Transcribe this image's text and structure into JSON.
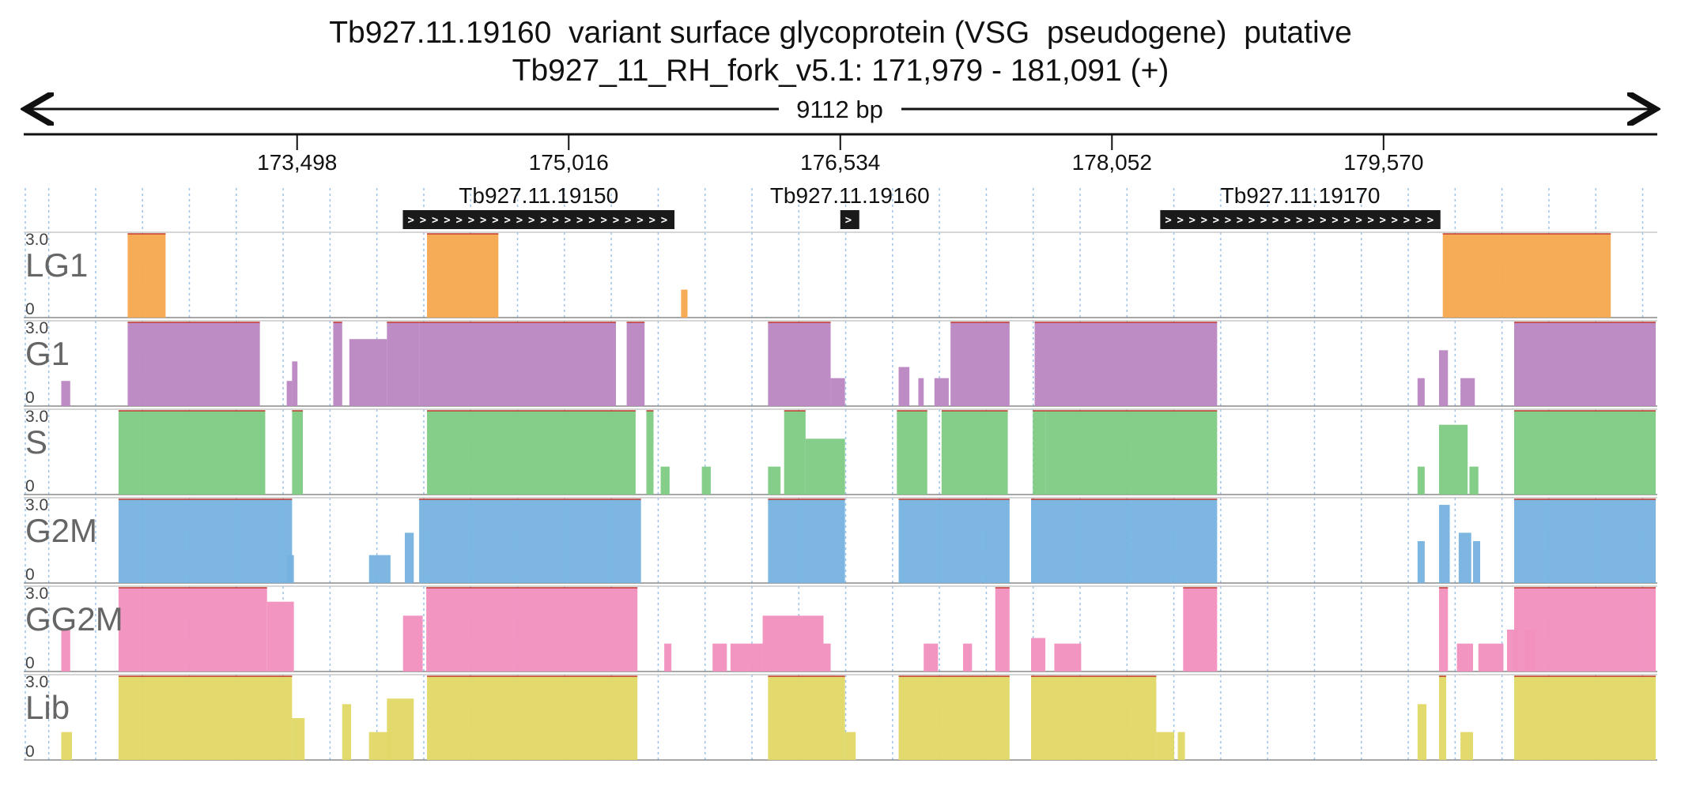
{
  "header": {
    "title": "Tb927.11.19160  variant surface glycoprotein (VSG  pseudogene)  putative",
    "subtitle": "Tb927_11_RH_fork_v5.1: 171,979 - 181,091 (+)"
  },
  "chart_data": {
    "type": "area",
    "region": {
      "chrom": "Tb927_11_RH_fork_v5.1",
      "start": 171979,
      "end": 181091,
      "strand": "+",
      "length_label": "9112 bp"
    },
    "ticks": [
      173498,
      175016,
      176534,
      178052,
      179570
    ],
    "tick_labels": [
      "173,498",
      "175,016",
      "176,534",
      "178,052",
      "179,570"
    ],
    "genes": [
      {
        "name": "Tb927.11.19150",
        "start": 174089,
        "end": 175607,
        "strand": "+",
        "arrow": ">"
      },
      {
        "name": "Tb927.11.19160",
        "start": 176534,
        "end": 176640,
        "strand": "+",
        "arrow": ">"
      },
      {
        "name": "Tb927.11.19170",
        "start": 178322,
        "end": 179888,
        "strand": "+",
        "arrow": ">"
      }
    ],
    "ylim": [
      0,
      3.0
    ],
    "y_max_label": "3.0",
    "y_min_label": "0",
    "grid_bin": 262,
    "tracks": [
      {
        "name": "LG1",
        "color": "#f5a84e",
        "segments": [
          [
            172551,
            172763,
            3.0
          ],
          [
            174224,
            174623,
            3.0
          ],
          [
            175644,
            175680,
            1.0
          ],
          [
            179901,
            180840,
            3.0
          ]
        ]
      },
      {
        "name": "G1",
        "color": "#ba86c2",
        "segments": [
          [
            172180,
            172230,
            0.9
          ],
          [
            172551,
            173290,
            3.0
          ],
          [
            173440,
            173470,
            0.9
          ],
          [
            173470,
            173500,
            1.6
          ],
          [
            173700,
            173750,
            3.0
          ],
          [
            173790,
            174000,
            2.4
          ],
          [
            174000,
            174180,
            3.0
          ],
          [
            174180,
            175280,
            3.0
          ],
          [
            175340,
            175440,
            3.0
          ],
          [
            176130,
            176480,
            3.0
          ],
          [
            176480,
            176560,
            1.0
          ],
          [
            176860,
            176920,
            1.4
          ],
          [
            176970,
            177000,
            1.0
          ],
          [
            177060,
            177140,
            1.0
          ],
          [
            177150,
            177480,
            3.0
          ],
          [
            177620,
            178640,
            3.0
          ],
          [
            179760,
            179800,
            1.0
          ],
          [
            179880,
            179930,
            2.0
          ],
          [
            180000,
            180080,
            1.0
          ],
          [
            180300,
            181091,
            3.0
          ]
        ]
      },
      {
        "name": "S",
        "color": "#7ecb83",
        "segments": [
          [
            172500,
            173320,
            3.0
          ],
          [
            173470,
            173530,
            3.0
          ],
          [
            174224,
            175390,
            3.0
          ],
          [
            175450,
            175490,
            3.0
          ],
          [
            175530,
            175580,
            1.0
          ],
          [
            175760,
            175810,
            1.0
          ],
          [
            176130,
            176200,
            1.0
          ],
          [
            176220,
            176340,
            3.0
          ],
          [
            176340,
            176560,
            2.0
          ],
          [
            176850,
            177020,
            3.0
          ],
          [
            177100,
            177470,
            3.0
          ],
          [
            177610,
            177680,
            3.0
          ],
          [
            177680,
            178640,
            3.0
          ],
          [
            179760,
            179800,
            1.0
          ],
          [
            179880,
            180040,
            2.5
          ],
          [
            180050,
            180100,
            1.0
          ],
          [
            180300,
            181091,
            3.0
          ]
        ]
      },
      {
        "name": "G2M",
        "color": "#76b2df",
        "segments": [
          [
            172500,
            173470,
            3.0
          ],
          [
            173440,
            173480,
            1.0
          ],
          [
            173900,
            174020,
            1.0
          ],
          [
            174100,
            174150,
            1.8
          ],
          [
            174180,
            175420,
            3.0
          ],
          [
            176130,
            176560,
            3.0
          ],
          [
            176860,
            177480,
            3.0
          ],
          [
            177600,
            178640,
            3.0
          ],
          [
            179760,
            179800,
            1.5
          ],
          [
            179880,
            179940,
            2.8
          ],
          [
            179990,
            180060,
            1.8
          ],
          [
            180070,
            180110,
            1.5
          ],
          [
            180300,
            181091,
            3.0
          ]
        ]
      },
      {
        "name": "GG2M",
        "color": "#f18fbe",
        "segments": [
          [
            172180,
            172230,
            1.5
          ],
          [
            172500,
            173330,
            3.0
          ],
          [
            173330,
            173480,
            2.5
          ],
          [
            174090,
            174200,
            2.0
          ],
          [
            174220,
            175400,
            3.0
          ],
          [
            175550,
            175590,
            1.0
          ],
          [
            175820,
            175900,
            1.0
          ],
          [
            175920,
            176100,
            1.0
          ],
          [
            176100,
            176250,
            2.0
          ],
          [
            176250,
            176440,
            2.0
          ],
          [
            176440,
            176480,
            1.0
          ],
          [
            177000,
            177080,
            1.0
          ],
          [
            177220,
            177270,
            1.0
          ],
          [
            177400,
            177480,
            3.0
          ],
          [
            177600,
            177680,
            1.2
          ],
          [
            177730,
            177880,
            1.0
          ],
          [
            178450,
            178640,
            3.0
          ],
          [
            179880,
            179930,
            3.0
          ],
          [
            179980,
            180070,
            1.0
          ],
          [
            180100,
            180240,
            1.0
          ],
          [
            180260,
            180320,
            1.5
          ],
          [
            180360,
            180420,
            1.5
          ],
          [
            180300,
            181091,
            3.0
          ]
        ]
      },
      {
        "name": "Lib",
        "color": "#e2d866",
        "segments": [
          [
            172180,
            172240,
            1.0
          ],
          [
            172500,
            173470,
            3.0
          ],
          [
            173470,
            173540,
            1.5
          ],
          [
            173750,
            173800,
            2.0
          ],
          [
            173900,
            174030,
            1.0
          ],
          [
            174000,
            174150,
            2.2
          ],
          [
            174224,
            175400,
            3.0
          ],
          [
            176130,
            176560,
            3.0
          ],
          [
            176560,
            176620,
            1.0
          ],
          [
            176860,
            177480,
            3.0
          ],
          [
            177600,
            178300,
            3.0
          ],
          [
            178300,
            178400,
            1.0
          ],
          [
            178420,
            178460,
            1.0
          ],
          [
            179760,
            179810,
            2.0
          ],
          [
            179880,
            179920,
            3.0
          ],
          [
            180000,
            180070,
            1.0
          ],
          [
            180300,
            181091,
            3.0
          ]
        ]
      }
    ]
  }
}
